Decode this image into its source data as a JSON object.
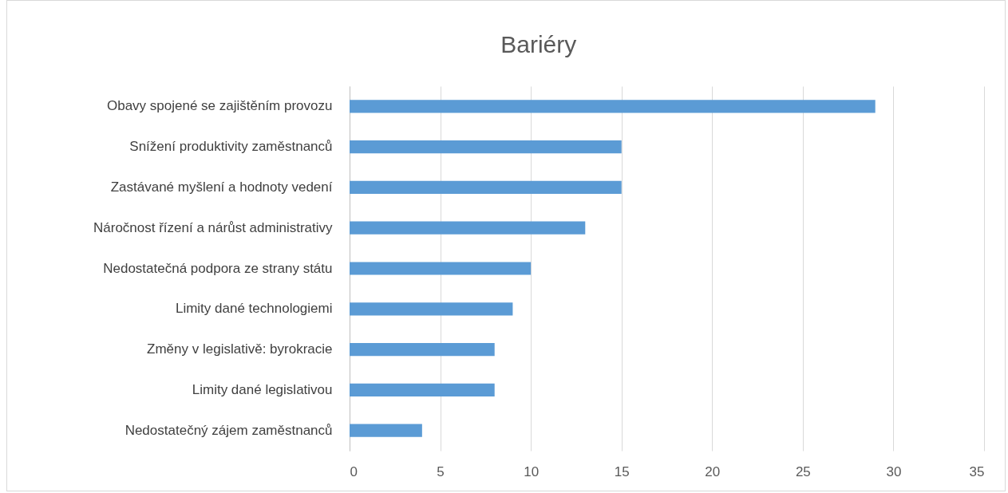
{
  "chart_data": {
    "type": "bar",
    "orientation": "horizontal",
    "title": "Bariéry",
    "categories": [
      "Obavy spojené se zajištěním provozu",
      "Snížení produktivity zaměstnanců",
      "Zastávané myšlení a hodnoty vedení",
      "Náročnost řízení a nárůst administrativy",
      "Nedostatečná podpora ze strany státu",
      "Limity dané technologiemi",
      "Změny v legislativě: byrokracie",
      "Limity dané legislativou",
      "Nedostatečný zájem zaměstnanců"
    ],
    "values": [
      29,
      15,
      15,
      13,
      10,
      9,
      8,
      8,
      4
    ],
    "color": "#5b9bd5",
    "xlim": [
      0,
      35
    ],
    "xticks": [
      0,
      5,
      10,
      15,
      20,
      25,
      30,
      35
    ],
    "grid": "x"
  }
}
